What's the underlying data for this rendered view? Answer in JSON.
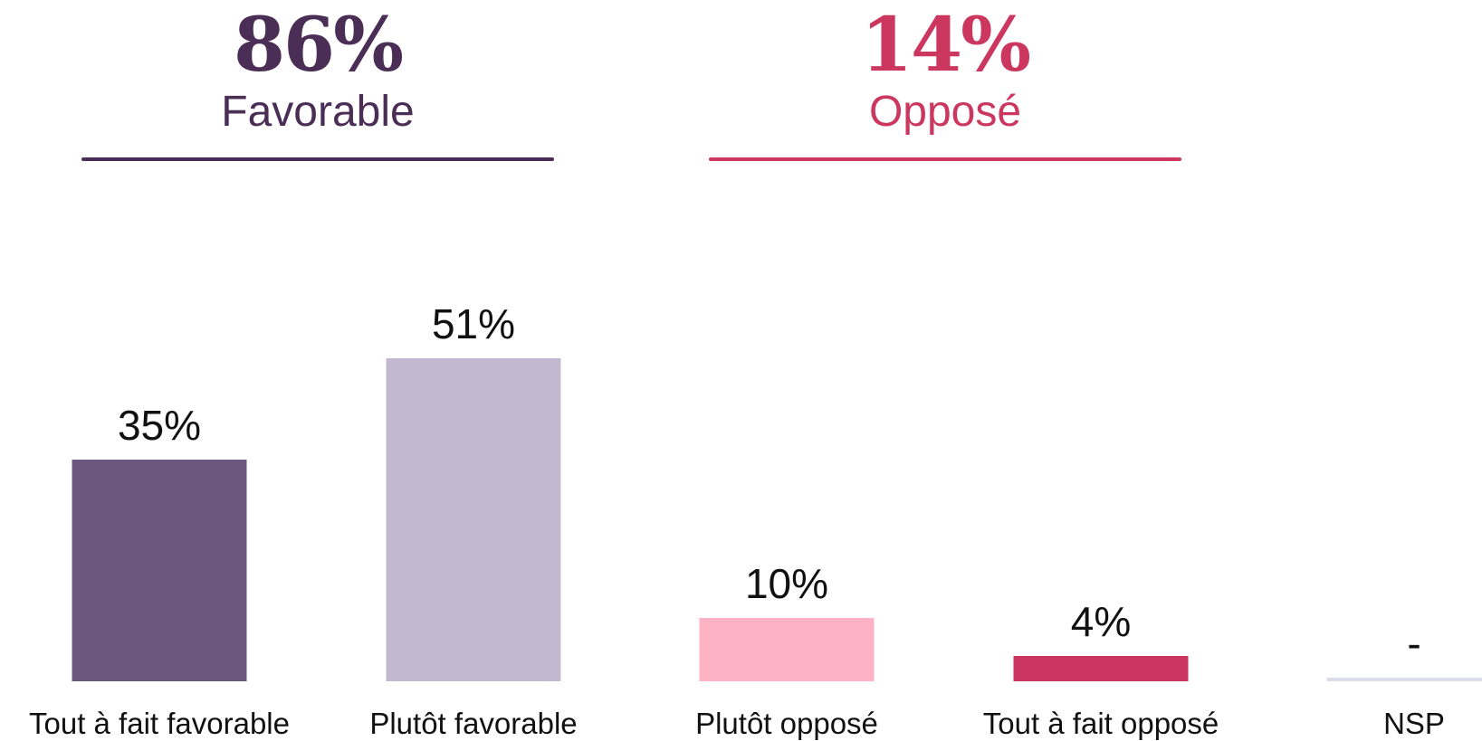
{
  "summary": {
    "favorable": {
      "value": "86%",
      "label": "Favorable",
      "color": "#4b2e55"
    },
    "oppose": {
      "value": "14%",
      "label": "Opposé",
      "color": "#cc3760"
    }
  },
  "chart_data": {
    "type": "bar",
    "categories": [
      "Tout à fait favorable",
      "Plutôt favorable",
      "Plutôt opposé",
      "Tout à fait opposé",
      "NSP"
    ],
    "values": [
      35,
      51,
      10,
      4,
      null
    ],
    "value_labels": [
      "35%",
      "51%",
      "10%",
      "4%",
      "-"
    ],
    "colors": [
      "#6a5880",
      "#c2b9d1",
      "#fdb3c3",
      "#cc3560",
      "#dcdcea"
    ],
    "ylim": [
      0,
      100
    ],
    "grid": false,
    "legend": "none"
  }
}
